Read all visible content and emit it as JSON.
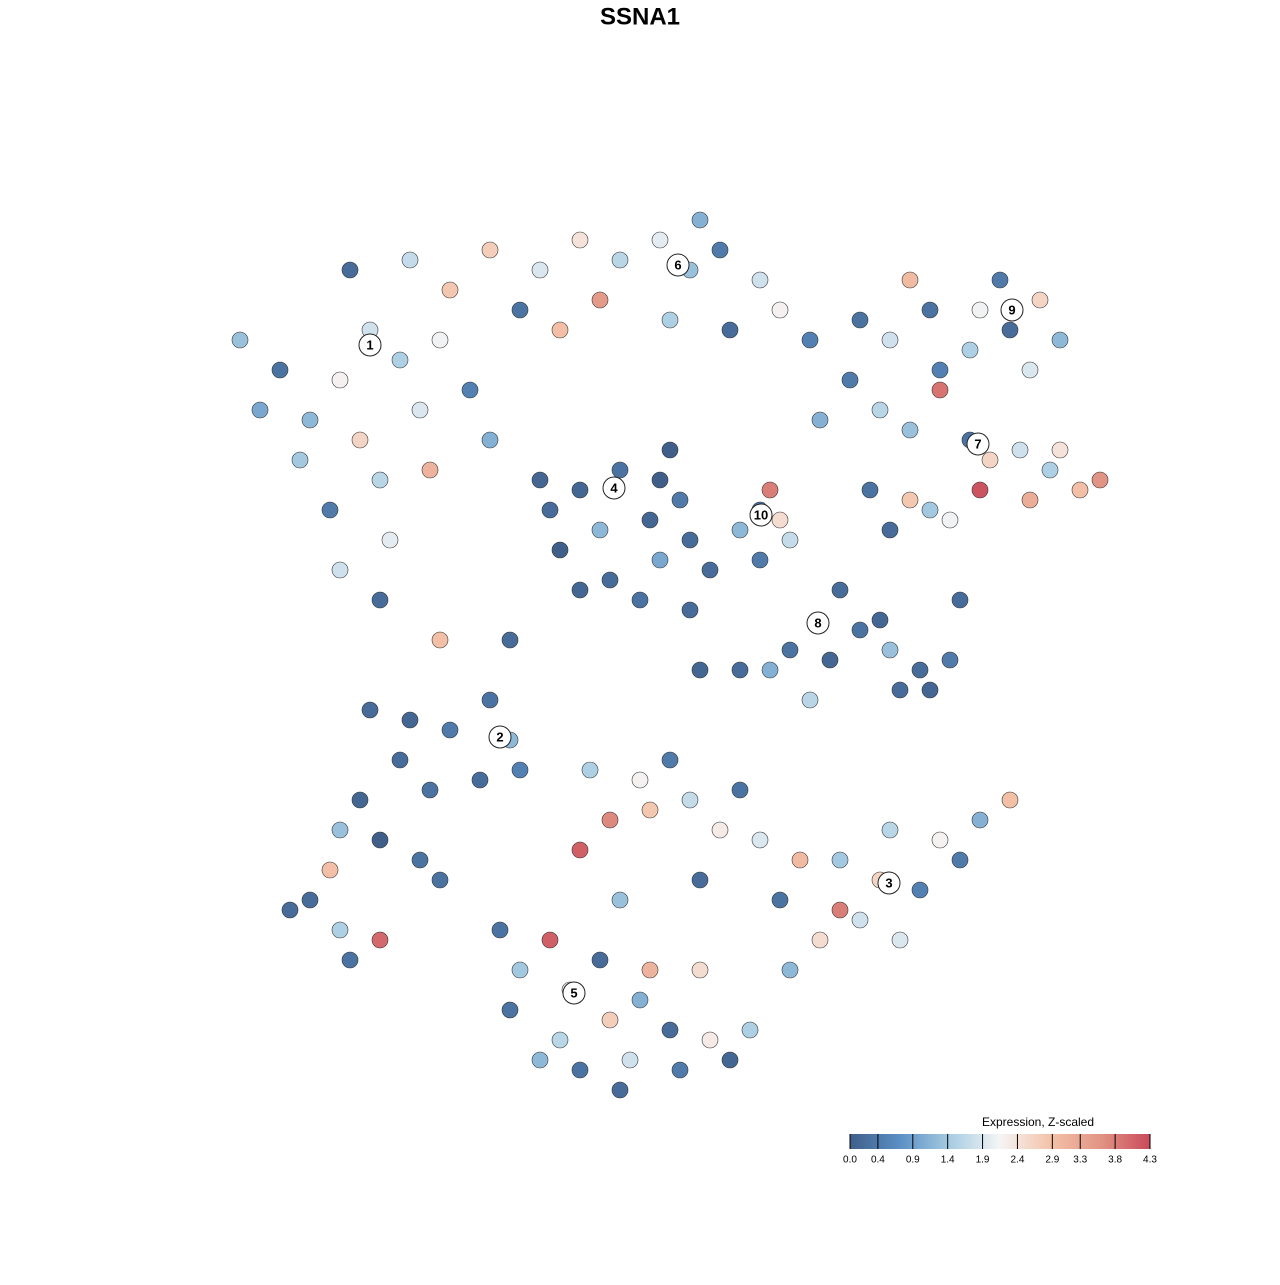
{
  "chart_data": {
    "type": "scatter",
    "title": "SSNA1",
    "xlim": [
      -44,
      51
    ],
    "ylim": [
      -47,
      46
    ],
    "x": [
      -27,
      -30,
      -24,
      -33,
      -36,
      -28,
      -22,
      -20,
      -38,
      -26,
      -31,
      -25,
      -34,
      -19,
      -23,
      -29,
      -40,
      -17,
      -21,
      -26,
      -30,
      -15,
      -15,
      -10,
      -6,
      -2,
      2,
      5,
      8,
      12,
      -12,
      -8,
      3,
      9,
      14,
      17,
      -4,
      6,
      -6,
      -2,
      2,
      -9,
      -4,
      1,
      4,
      -8,
      -3,
      2,
      -6,
      0,
      5,
      -10,
      3,
      7,
      25,
      29,
      33,
      37,
      40,
      42,
      36,
      27,
      30,
      39,
      34,
      22,
      21,
      24,
      27,
      30,
      33,
      35,
      38,
      41,
      44,
      46,
      39,
      29,
      25,
      31,
      23,
      18,
      27,
      34,
      42,
      12,
      13,
      10,
      15,
      12,
      14,
      20,
      22,
      19,
      25,
      28,
      31,
      29,
      26,
      15,
      13,
      10,
      24,
      32,
      17,
      -27,
      -23,
      -19,
      -15,
      -13,
      -24,
      -28,
      -21,
      -26,
      -30,
      -16,
      -12,
      -22,
      -31,
      -33,
      -30,
      -26,
      -29,
      -5,
      0,
      3,
      -3,
      1,
      5,
      8,
      10,
      12,
      16,
      20,
      24,
      28,
      25,
      30,
      34,
      37,
      32,
      22,
      18,
      14,
      20,
      15,
      26,
      -6,
      6,
      -2,
      -12,
      -9,
      -7,
      -4,
      -13,
      -8,
      -3,
      0,
      3,
      -6,
      -1,
      4,
      7,
      9,
      -10,
      -2,
      11,
      1,
      -14,
      6,
      -20,
      -13,
      6,
      5,
      -20,
      -35
    ],
    "y": [
      31,
      26,
      28,
      22,
      27,
      20,
      23,
      30,
      23,
      16,
      13,
      10,
      18,
      35,
      38,
      37,
      30,
      25,
      17,
      4,
      7,
      20,
      39,
      37,
      40,
      38,
      40,
      37,
      39,
      36,
      33,
      31,
      32,
      31,
      33,
      30,
      34,
      42,
      15,
      17,
      16,
      13,
      11,
      12,
      14,
      9,
      6,
      8,
      5,
      4,
      10,
      16,
      19,
      7,
      30,
      33,
      29,
      31,
      34,
      30,
      36,
      36,
      27,
      27,
      33,
      32,
      26,
      23,
      21,
      25,
      20,
      18,
      19,
      17,
      15,
      16,
      14,
      13,
      11,
      12,
      15,
      22,
      14,
      15,
      19,
      13,
      15,
      11,
      10,
      8,
      12,
      5,
      1,
      -2,
      -1,
      -3,
      -2,
      -5,
      -5,
      -1,
      -3,
      -3,
      2,
      4,
      -6,
      -7,
      -8,
      -9,
      -6,
      -10,
      -12,
      -16,
      -15,
      -20,
      -19,
      -14,
      -13,
      -22,
      -23,
      -26,
      -29,
      -30,
      -32,
      -13,
      -14,
      -12,
      -18,
      -17,
      -16,
      -19,
      -15,
      -20,
      -22,
      -22,
      -24,
      -25,
      -19,
      -20,
      -18,
      -16,
      -22,
      -28,
      -30,
      -26,
      -27,
      -33,
      -30,
      -21,
      -24,
      -26,
      -33,
      -30,
      -35,
      -32,
      -37,
      -40,
      -38,
      -36,
      -39,
      -43,
      -42,
      -43,
      -40,
      -42,
      -42,
      -45,
      -39,
      -33,
      -29,
      -33,
      0,
      0,
      -3,
      3,
      -24,
      -27
    ],
    "values": [
      1.8,
      2.2,
      1.5,
      1.2,
      0.3,
      2.6,
      1.9,
      2.1,
      1.0,
      1.6,
      0.4,
      2.0,
      1.4,
      2.8,
      1.7,
      0.2,
      1.3,
      0.5,
      3.1,
      0.2,
      1.8,
      1.1,
      2.7,
      1.9,
      2.4,
      1.6,
      2.0,
      1.3,
      0.4,
      1.8,
      0.3,
      2.9,
      1.5,
      0.2,
      2.2,
      0.5,
      3.5,
      1.1,
      0.1,
      0.3,
      0.0,
      0.2,
      1.2,
      0.1,
      0.4,
      0.0,
      0.2,
      1.0,
      0.1,
      0.3,
      0.2,
      0.1,
      0.0,
      0.2,
      1.8,
      0.3,
      1.5,
      0.2,
      2.6,
      1.2,
      0.4,
      3.0,
      0.5,
      1.9,
      2.1,
      0.3,
      0.4,
      1.6,
      1.3,
      3.9,
      0.3,
      2.6,
      1.8,
      1.5,
      2.9,
      3.6,
      3.2,
      1.4,
      0.2,
      2.1,
      0.3,
      1.1,
      2.8,
      4.2,
      2.4,
      0.3,
      3.8,
      1.2,
      1.7,
      0.4,
      2.5,
      0.2,
      0.3,
      0.1,
      1.3,
      0.2,
      0.4,
      0.1,
      0.2,
      0.3,
      1.1,
      0.2,
      0.1,
      0.2,
      1.6,
      0.2,
      0.1,
      0.4,
      0.3,
      1.2,
      0.2,
      0.1,
      0.3,
      0.0,
      1.3,
      0.2,
      0.5,
      0.3,
      2.9,
      0.2,
      1.5,
      4.0,
      0.3,
      1.5,
      2.2,
      0.4,
      3.7,
      2.8,
      1.7,
      2.3,
      0.3,
      1.9,
      3.0,
      1.4,
      2.6,
      0.5,
      1.6,
      2.2,
      1.1,
      2.9,
      0.4,
      1.8,
      2.5,
      0.3,
      3.8,
      1.2,
      1.9,
      4.1,
      0.2,
      1.3,
      1.4,
      4.1,
      2.0,
      0.2,
      0.3,
      1.6,
      2.7,
      1.1,
      0.2,
      0.3,
      1.8,
      0.4,
      2.3,
      0.1,
      1.2,
      0.2,
      1.5,
      3.1,
      0.3,
      2.5,
      2.9,
      0.2,
      0.1,
      0.2,
      0.3,
      0.2
    ],
    "cluster_labels": [
      {
        "label": "1",
        "x": -27,
        "y": 29.5
      },
      {
        "label": "2",
        "x": -14,
        "y": -9.7
      },
      {
        "label": "3",
        "x": 24.9,
        "y": -24.3
      },
      {
        "label": "4",
        "x": -2.6,
        "y": 15.2
      },
      {
        "label": "5",
        "x": -6.6,
        "y": -35.3
      },
      {
        "label": "6",
        "x": 3.8,
        "y": 37.5
      },
      {
        "label": "7",
        "x": 33.8,
        "y": 19.6
      },
      {
        "label": "8",
        "x": 17.8,
        "y": 1.7
      },
      {
        "label": "9",
        "x": 37.2,
        "y": 33
      },
      {
        "label": "10",
        "x": 12.1,
        "y": 12.5
      }
    ],
    "legend": {
      "title": "Expression, Z-scaled",
      "clim": [
        0,
        4.3
      ],
      "colorscale": [
        "#3f5f8a",
        "#5b8fc4",
        "#a7cce2",
        "#f5f5f5",
        "#f4c2a9",
        "#e29585",
        "#c94a5a"
      ],
      "ticks": [
        {
          "value": 0,
          "label": "0.0"
        },
        0.4,
        0.9,
        1.4,
        1.9,
        2.4,
        2.9,
        3.3,
        3.8,
        4.3
      ]
    }
  }
}
